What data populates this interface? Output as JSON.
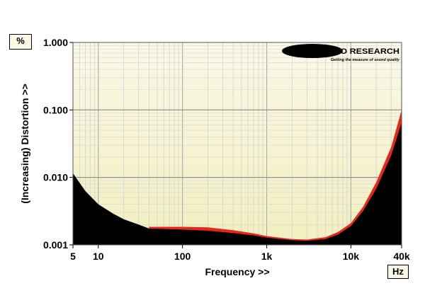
{
  "chart_data": {
    "type": "area",
    "title": "",
    "xlabel": "Frequency >>",
    "ylabel": "(Increasing) Distortion >>",
    "x_unit": "Hz",
    "y_unit": "%",
    "x_scale": "log",
    "y_scale": "log",
    "xlim": [
      5,
      40000
    ],
    "ylim": [
      0.001,
      1.0
    ],
    "x_ticks": [
      {
        "value": 5,
        "label": "5"
      },
      {
        "value": 10,
        "label": "10"
      },
      {
        "value": 100,
        "label": "100"
      },
      {
        "value": 1000,
        "label": "1k"
      },
      {
        "value": 10000,
        "label": "10k"
      },
      {
        "value": 40000,
        "label": "40k"
      }
    ],
    "y_ticks": [
      {
        "value": 0.001,
        "label": "0.001"
      },
      {
        "value": 0.01,
        "label": "0.010"
      },
      {
        "value": 0.1,
        "label": "0.100"
      },
      {
        "value": 1.0,
        "label": "1.000"
      }
    ],
    "grid": true,
    "series": [
      {
        "color": "#e8261a",
        "x": [
          40,
          100,
          200,
          400,
          700,
          1000,
          2000,
          3000,
          5000,
          7000,
          10000,
          14000,
          20000,
          30000,
          40000
        ],
        "y": [
          0.00185,
          0.00185,
          0.00182,
          0.00165,
          0.00148,
          0.00135,
          0.00122,
          0.0012,
          0.0013,
          0.00155,
          0.0021,
          0.0037,
          0.0085,
          0.028,
          0.1
        ]
      },
      {
        "color": "#000000",
        "x": [
          5,
          7,
          10,
          15,
          20,
          30,
          40,
          100,
          200,
          400,
          700,
          1000,
          2000,
          3000,
          5000,
          7000,
          10000,
          14000,
          20000,
          30000,
          40000
        ],
        "y": [
          0.0115,
          0.0063,
          0.004,
          0.0029,
          0.0024,
          0.002,
          0.00175,
          0.00168,
          0.00162,
          0.0015,
          0.00138,
          0.00128,
          0.00117,
          0.00115,
          0.00122,
          0.00142,
          0.0019,
          0.0032,
          0.0068,
          0.021,
          0.065
        ]
      }
    ]
  },
  "brand": {
    "logo_text": "MILLER AUDIO RESEARCH",
    "tagline": "Getting the measure of sound quality"
  }
}
